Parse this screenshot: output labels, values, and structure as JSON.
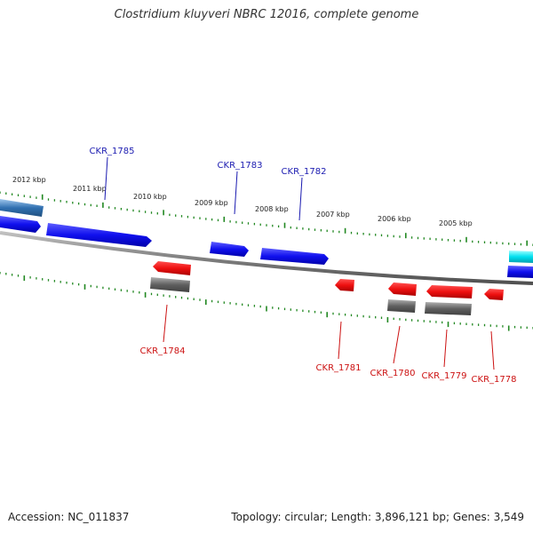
{
  "title": "Clostridium kluyveri NBRC 12016, complete genome",
  "footer": {
    "accession": "Accession: NC_011837",
    "info": "Topology: circular; Length: 3,896,121 bp; Genes: 3,549"
  },
  "colors": {
    "forward_gene": "#1010ee",
    "reverse_gene": "#ee1010",
    "reverse_rna": "#606060",
    "edge_forward": "#3070b0",
    "edge_cyan": "#00e0f0",
    "backbone": "#808080",
    "ticks": "#228822",
    "label_forward": "#1a1ab0",
    "label_reverse": "#cc1111"
  },
  "scale": [
    {
      "label": "2012 kbp"
    },
    {
      "label": "2011 kbp"
    },
    {
      "label": "2010 kbp"
    },
    {
      "label": "2009 kbp"
    },
    {
      "label": "2008 kbp"
    },
    {
      "label": "2007 kbp"
    },
    {
      "label": "2006 kbp"
    },
    {
      "label": "2005 kbp"
    }
  ],
  "gene_labels": [
    {
      "name": "CKR_1785",
      "strand": "forward"
    },
    {
      "name": "CKR_1783",
      "strand": "forward"
    },
    {
      "name": "CKR_1782",
      "strand": "forward"
    },
    {
      "name": "CKR_1784",
      "strand": "reverse"
    },
    {
      "name": "CKR_1781",
      "strand": "reverse"
    },
    {
      "name": "CKR_1780",
      "strand": "reverse"
    },
    {
      "name": "CKR_1779",
      "strand": "reverse"
    },
    {
      "name": "CKR_1778",
      "strand": "reverse"
    }
  ]
}
